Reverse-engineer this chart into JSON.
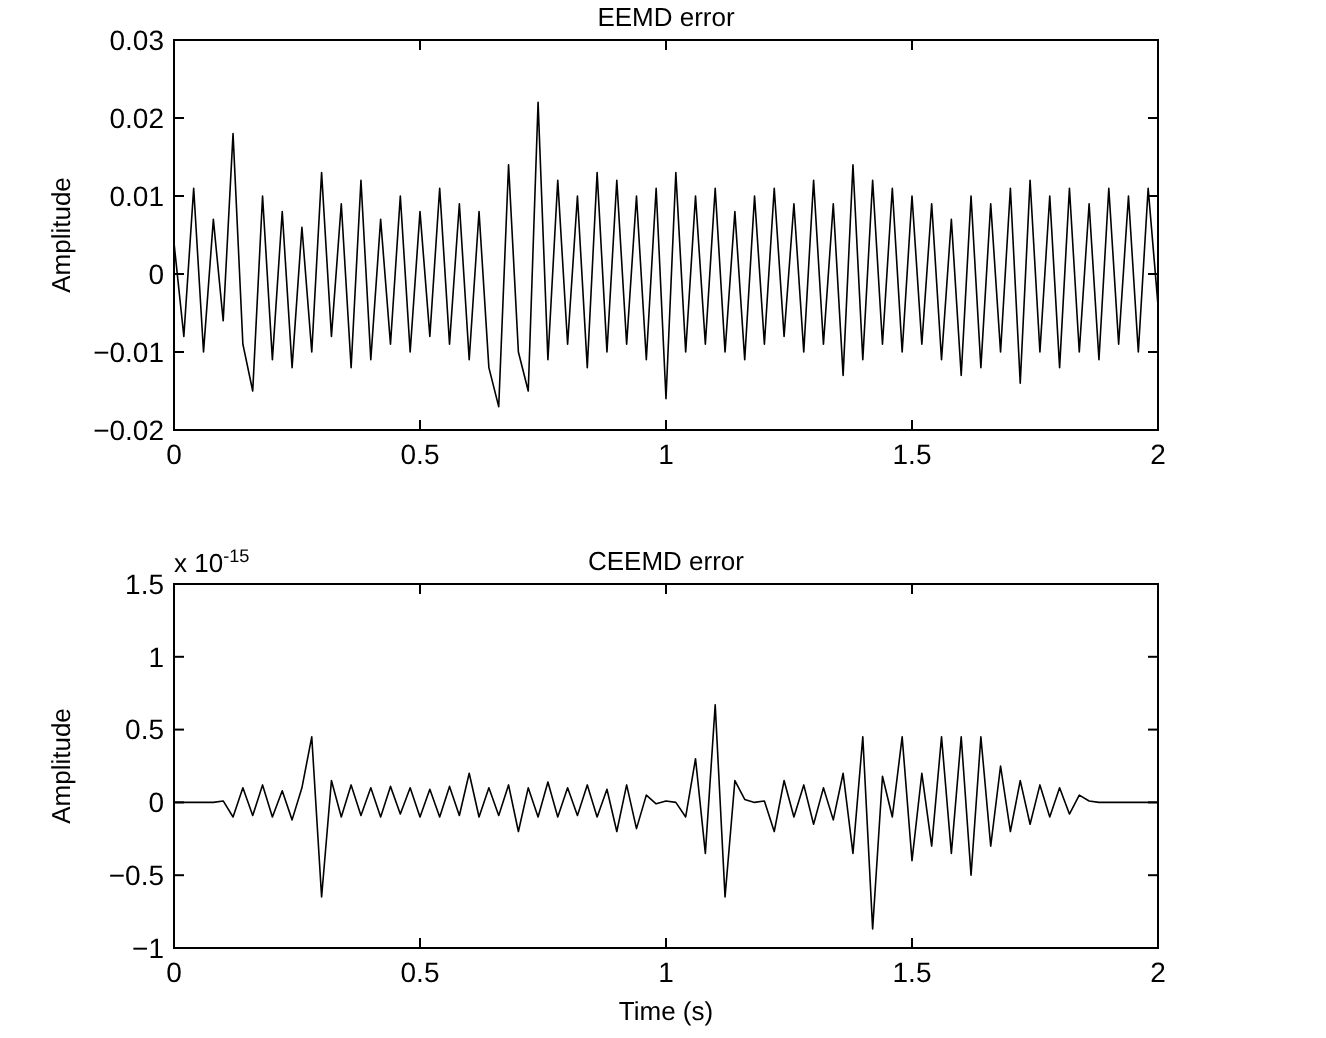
{
  "chart_data": [
    {
      "type": "line",
      "title": "EEMD error",
      "ylabel": "Amplitude",
      "x": [
        0,
        0.02,
        0.04,
        0.06,
        0.08,
        0.1,
        0.12,
        0.14,
        0.16,
        0.18,
        0.2,
        0.22,
        0.24,
        0.26,
        0.28,
        0.3,
        0.32,
        0.34,
        0.36,
        0.38,
        0.4,
        0.42,
        0.44,
        0.46,
        0.48,
        0.5,
        0.52,
        0.54,
        0.56,
        0.58,
        0.6,
        0.62,
        0.64,
        0.66,
        0.68,
        0.7,
        0.72,
        0.74,
        0.76,
        0.78,
        0.8,
        0.82,
        0.84,
        0.86,
        0.88,
        0.9,
        0.92,
        0.94,
        0.96,
        0.98,
        1,
        1.02,
        1.04,
        1.06,
        1.08,
        1.1,
        1.12,
        1.14,
        1.16,
        1.18,
        1.2,
        1.22,
        1.24,
        1.26,
        1.28,
        1.3,
        1.32,
        1.34,
        1.36,
        1.38,
        1.4,
        1.42,
        1.44,
        1.46,
        1.48,
        1.5,
        1.52,
        1.54,
        1.56,
        1.58,
        1.6,
        1.62,
        1.64,
        1.66,
        1.68,
        1.7,
        1.72,
        1.74,
        1.76,
        1.78,
        1.8,
        1.82,
        1.84,
        1.86,
        1.88,
        1.9,
        1.92,
        1.94,
        1.96,
        1.98,
        2
      ],
      "series": [
        {
          "color": "#000000",
          "values": [
            0.004,
            -0.008,
            0.011,
            -0.01,
            0.007,
            -0.006,
            0.018,
            -0.009,
            -0.015,
            0.01,
            -0.011,
            0.008,
            -0.012,
            0.006,
            -0.01,
            0.013,
            -0.008,
            0.009,
            -0.012,
            0.012,
            -0.011,
            0.007,
            -0.009,
            0.01,
            -0.01,
            0.008,
            -0.008,
            0.011,
            -0.009,
            0.009,
            -0.011,
            0.008,
            -0.012,
            -0.017,
            0.014,
            -0.01,
            -0.015,
            0.022,
            -0.011,
            0.012,
            -0.009,
            0.01,
            -0.012,
            0.013,
            -0.01,
            0.012,
            -0.009,
            0.01,
            -0.011,
            0.011,
            -0.016,
            0.013,
            -0.01,
            0.01,
            -0.009,
            0.011,
            -0.01,
            0.008,
            -0.011,
            0.01,
            -0.009,
            0.011,
            -0.008,
            0.009,
            -0.01,
            0.012,
            -0.009,
            0.009,
            -0.013,
            0.014,
            -0.011,
            0.012,
            -0.009,
            0.011,
            -0.01,
            0.01,
            -0.009,
            0.009,
            -0.011,
            0.007,
            -0.013,
            0.01,
            -0.012,
            0.009,
            -0.01,
            0.011,
            -0.014,
            0.012,
            -0.01,
            0.01,
            -0.012,
            0.011,
            -0.01,
            0.009,
            -0.011,
            0.011,
            -0.009,
            0.01,
            -0.01,
            0.011,
            -0.004
          ]
        }
      ],
      "xlim": [
        0,
        2
      ],
      "xticks": [
        0,
        0.5,
        1,
        1.5,
        2
      ],
      "ylim": [
        -0.02,
        0.03
      ],
      "yticks": [
        {
          "value": -0.02,
          "label": "−0.02"
        },
        {
          "value": -0.01,
          "label": "−0.01"
        },
        0,
        0.01,
        0.02,
        0.03
      ],
      "grid": false,
      "marker": "none",
      "line_style": "solid"
    },
    {
      "type": "line",
      "title": "CEEMD error",
      "xlabel": "Time (s)",
      "ylabel": "Amplitude",
      "annotations": [
        "x 10$^{-15}$"
      ],
      "x": [
        0,
        0.02,
        0.04,
        0.06,
        0.08,
        0.1,
        0.12,
        0.14,
        0.16,
        0.18,
        0.2,
        0.22,
        0.24,
        0.26,
        0.28,
        0.3,
        0.32,
        0.34,
        0.36,
        0.38,
        0.4,
        0.42,
        0.44,
        0.46,
        0.48,
        0.5,
        0.52,
        0.54,
        0.56,
        0.58,
        0.6,
        0.62,
        0.64,
        0.66,
        0.68,
        0.7,
        0.72,
        0.74,
        0.76,
        0.78,
        0.8,
        0.82,
        0.84,
        0.86,
        0.88,
        0.9,
        0.92,
        0.94,
        0.96,
        0.98,
        1,
        1.02,
        1.04,
        1.06,
        1.08,
        1.1,
        1.12,
        1.14,
        1.16,
        1.18,
        1.2,
        1.22,
        1.24,
        1.26,
        1.28,
        1.3,
        1.32,
        1.34,
        1.36,
        1.38,
        1.4,
        1.42,
        1.44,
        1.46,
        1.48,
        1.5,
        1.52,
        1.54,
        1.56,
        1.58,
        1.6,
        1.62,
        1.64,
        1.66,
        1.68,
        1.7,
        1.72,
        1.74,
        1.76,
        1.78,
        1.8,
        1.82,
        1.84,
        1.86,
        1.88,
        1.9,
        1.92,
        1.94,
        1.96,
        1.98,
        2
      ],
      "series": [
        {
          "color": "#000000",
          "values": [
            0,
            0,
            0,
            0,
            0,
            0.01,
            -0.1,
            0.1,
            -0.09,
            0.12,
            -0.1,
            0.08,
            -0.12,
            0.1,
            0.45,
            -0.65,
            0.15,
            -0.1,
            0.12,
            -0.09,
            0.1,
            -0.1,
            0.11,
            -0.08,
            0.1,
            -0.1,
            0.09,
            -0.1,
            0.11,
            -0.09,
            0.2,
            -0.1,
            0.1,
            -0.09,
            0.12,
            -0.2,
            0.1,
            -0.1,
            0.14,
            -0.1,
            0.1,
            -0.09,
            0.12,
            -0.1,
            0.09,
            -0.2,
            0.12,
            -0.18,
            0.05,
            -0.01,
            0.01,
            0,
            -0.1,
            0.3,
            -0.35,
            0.67,
            -0.65,
            0.15,
            0.02,
            0,
            0.01,
            -0.2,
            0.15,
            -0.1,
            0.12,
            -0.15,
            0.1,
            -0.12,
            0.2,
            -0.35,
            0.45,
            -0.87,
            0.18,
            -0.1,
            0.45,
            -0.4,
            0.2,
            -0.3,
            0.45,
            -0.35,
            0.45,
            -0.5,
            0.45,
            -0.3,
            0.25,
            -0.2,
            0.15,
            -0.15,
            0.12,
            -0.1,
            0.1,
            -0.08,
            0.05,
            0.01,
            0,
            0,
            0,
            0,
            0,
            0,
            0
          ]
        }
      ],
      "xlim": [
        0,
        2
      ],
      "xticks": [
        0,
        0.5,
        1,
        1.5,
        2
      ],
      "ylim": [
        -1,
        1.5
      ],
      "yticks": [
        {
          "value": -1,
          "label": "−1"
        },
        {
          "value": -0.5,
          "label": "−0.5"
        },
        0,
        0.5,
        1,
        1.5
      ],
      "grid": false,
      "marker": "none",
      "line_style": "solid"
    }
  ]
}
